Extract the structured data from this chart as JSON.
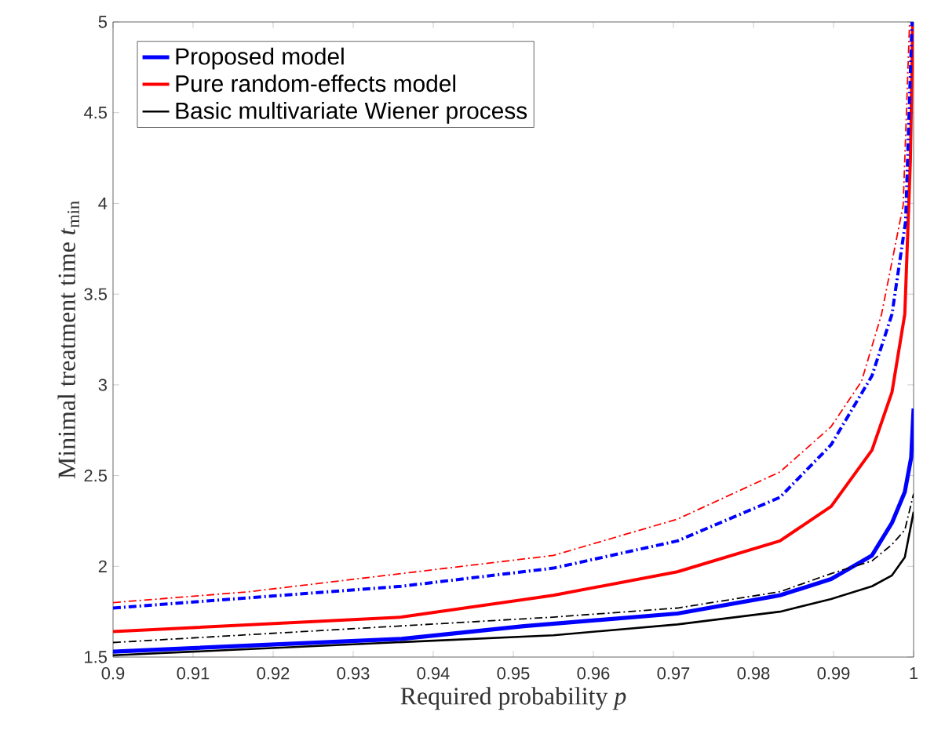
{
  "chart_data": {
    "type": "line",
    "xlabel": "Required probability *p*",
    "ylabel": "Minimal treatment time *t*$_{min}$",
    "xlim": [
      0.9,
      1
    ],
    "ylim": [
      1.5,
      5
    ],
    "xticks": [
      0.9,
      0.91,
      0.92,
      0.93,
      0.94,
      0.95,
      0.96,
      0.97,
      0.98,
      0.99,
      1
    ],
    "yticks": [
      1.5,
      2,
      2.5,
      3,
      3.5,
      4,
      4.5,
      5
    ],
    "grid": false,
    "legend": "top left",
    "marker": "none",
    "series": [
      {
        "name": "Proposed model",
        "color": "#0000ff",
        "line_style": "solid",
        "x": [
          0.9,
          0.936,
          0.9513,
          0.9705,
          0.9833,
          0.9897,
          0.9948,
          0.9973,
          0.9989,
          0.9997,
          1
        ],
        "values": [
          1.53,
          1.6,
          1.67,
          1.74,
          1.84,
          1.93,
          2.06,
          2.24,
          2.41,
          2.6,
          2.87
        ]
      },
      {
        "name": "Pure random-effects model",
        "color": "#ff0000",
        "line_style": "solid",
        "x": [
          0.9,
          0.936,
          0.955,
          0.9705,
          0.9833,
          0.9897,
          0.9948,
          0.9973,
          0.9989,
          0.9996,
          0.9999
        ],
        "values": [
          1.64,
          1.72,
          1.84,
          1.97,
          2.14,
          2.33,
          2.64,
          2.96,
          3.39,
          4.24,
          5
        ]
      },
      {
        "name": "Basic multivariate Wiener process",
        "color": "#000000",
        "line_style": "solid",
        "x": [
          0.9,
          0.955,
          0.9705,
          0.9833,
          0.9897,
          0.9948,
          0.9973,
          0.9989,
          1
        ],
        "values": [
          1.51,
          1.62,
          1.68,
          1.75,
          1.82,
          1.89,
          1.95,
          2.05,
          2.3
        ]
      },
      {
        "color": "#0000ff",
        "line_style": "dashdot",
        "x": [
          0.9,
          0.936,
          0.955,
          0.9705,
          0.9833,
          0.9897,
          0.9948,
          0.9973,
          0.999,
          0.9998
        ],
        "values": [
          1.77,
          1.89,
          1.99,
          2.14,
          2.38,
          2.67,
          3.05,
          3.39,
          3.9,
          5
        ]
      },
      {
        "color": "#ff0000",
        "line_style": "dashdot",
        "x": [
          0.9,
          0.917,
          0.936,
          0.955,
          0.9705,
          0.9833,
          0.9897,
          0.9935,
          0.996,
          0.9987,
          0.9995
        ],
        "values": [
          1.8,
          1.86,
          1.96,
          2.06,
          2.26,
          2.52,
          2.77,
          3.02,
          3.39,
          3.99,
          5
        ]
      },
      {
        "color": "#000000",
        "line_style": "dashdot",
        "x": [
          0.9,
          0.955,
          0.9705,
          0.9833,
          0.9897,
          0.9948,
          0.9973,
          0.9989,
          1
        ],
        "values": [
          1.58,
          1.72,
          1.77,
          1.86,
          1.96,
          2.03,
          2.12,
          2.2,
          2.4
        ]
      }
    ]
  }
}
